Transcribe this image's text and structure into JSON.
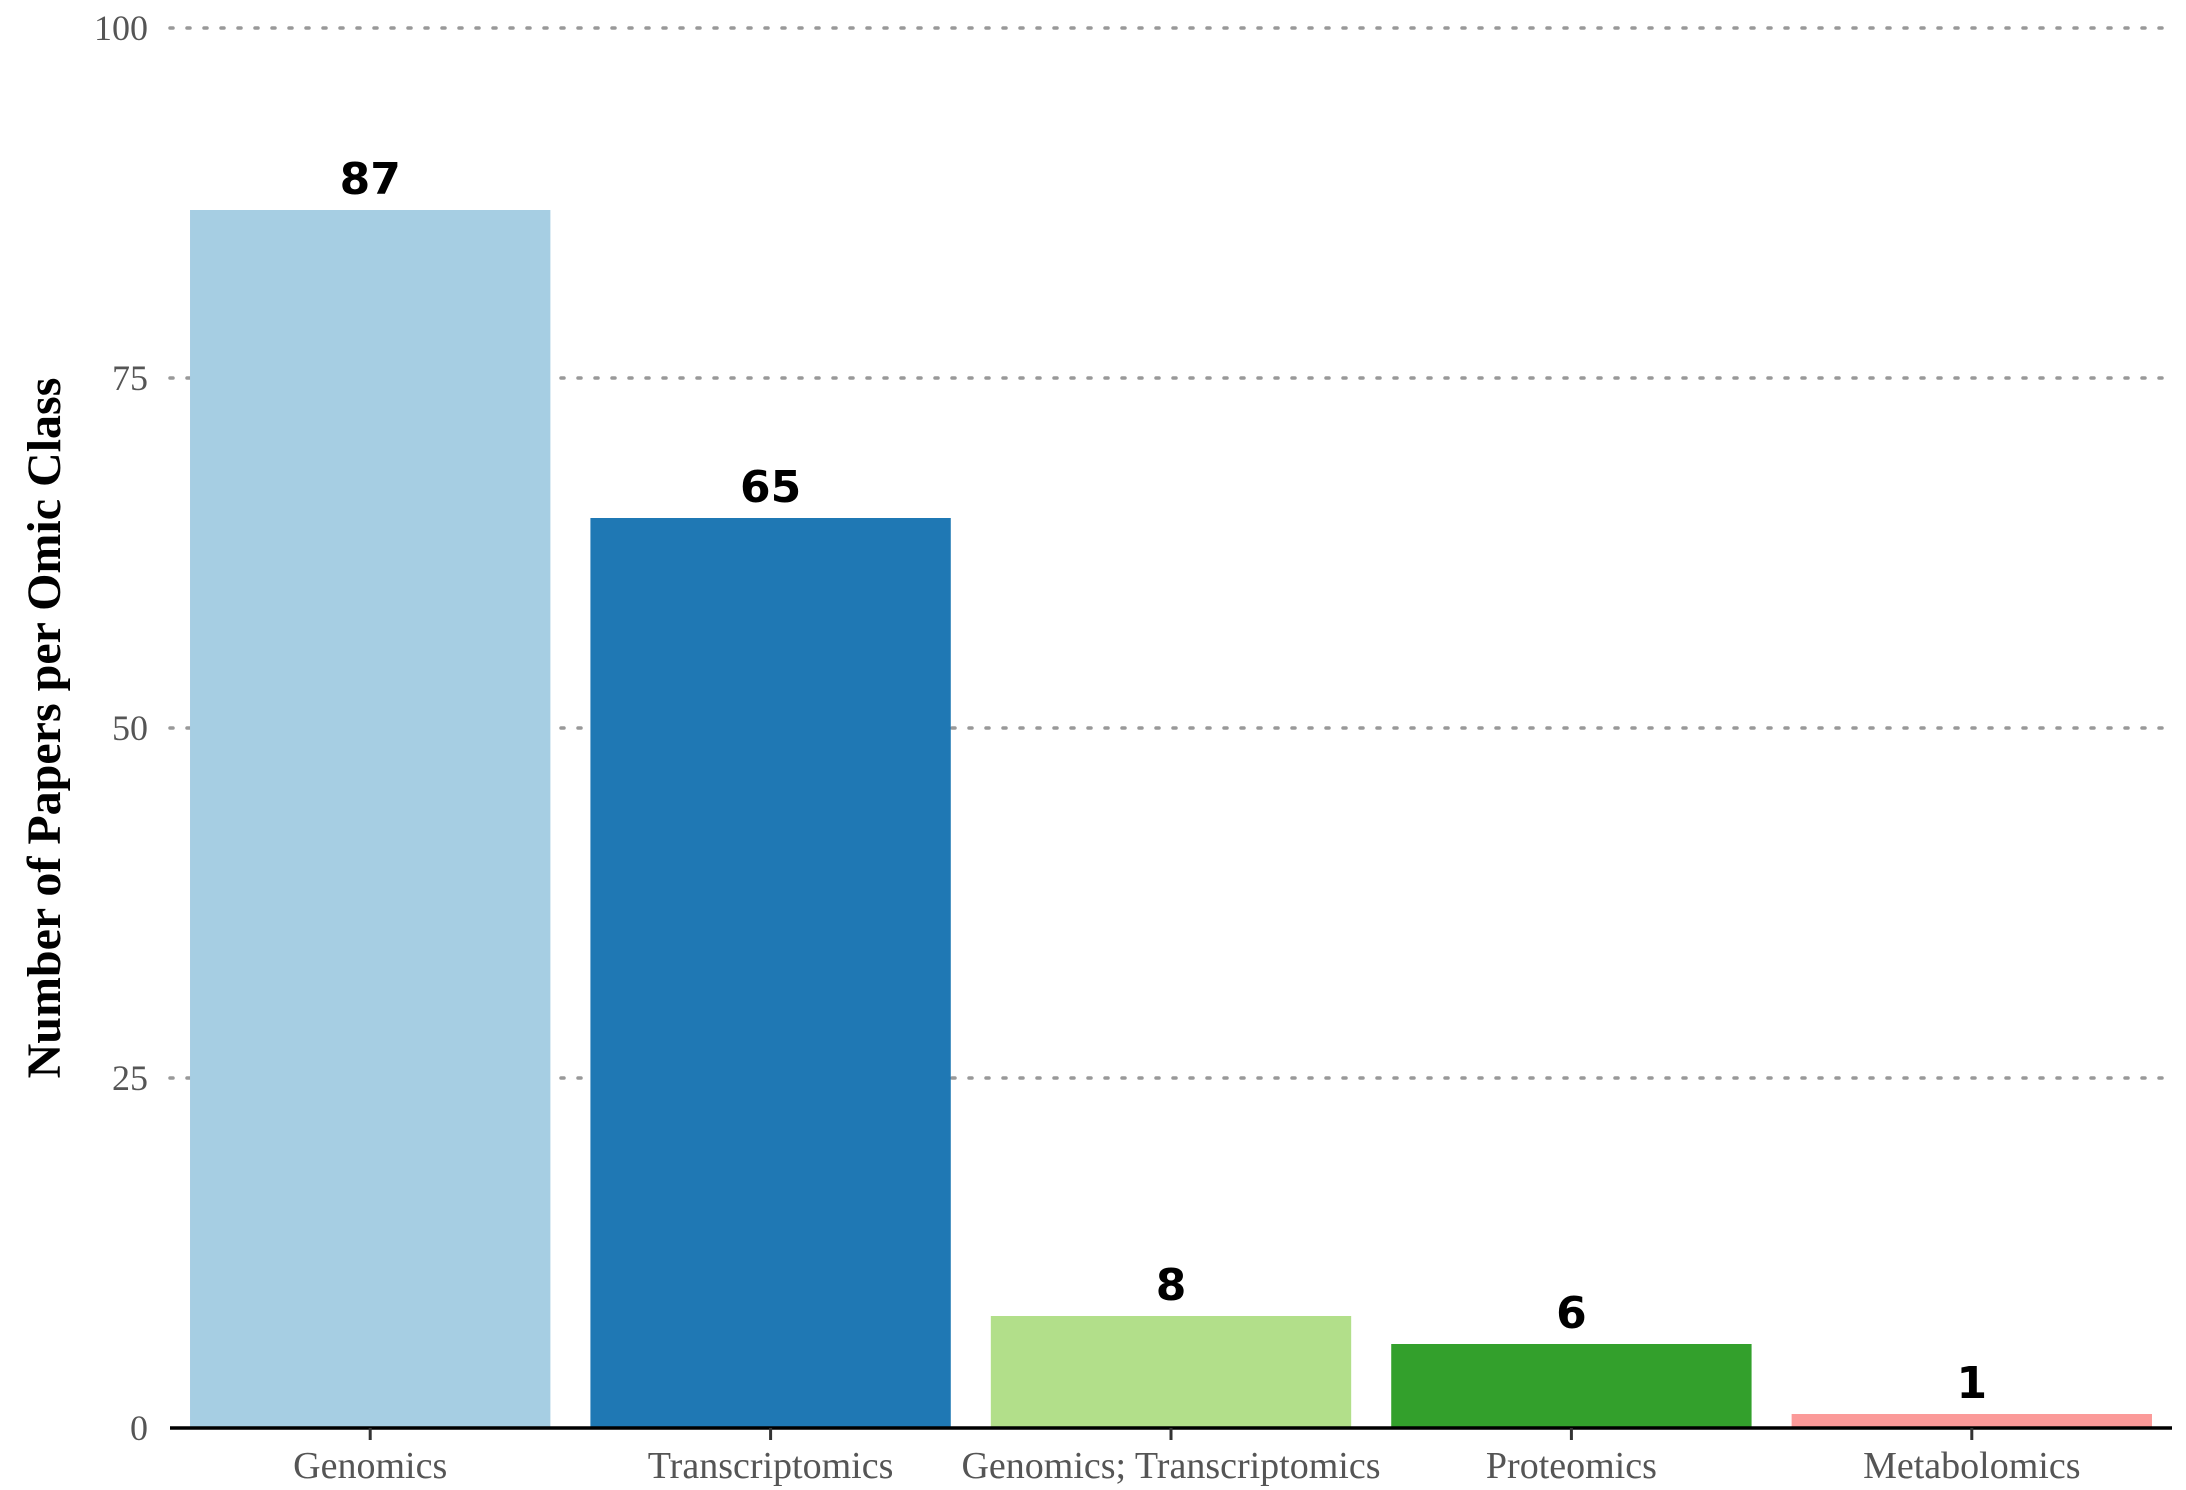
{
  "chart_data": {
    "type": "bar",
    "title": "",
    "xlabel": "",
    "ylabel": "Number of Papers per Omic Class",
    "categories": [
      "Genomics",
      "Transcriptomics",
      "Genomics; Transcriptomics",
      "Proteomics",
      "Metabolomics"
    ],
    "values": [
      87,
      65,
      8,
      6,
      1
    ],
    "data_labels": [
      "87",
      "65",
      "8",
      "6",
      "1"
    ],
    "colors": [
      "#a6cee3",
      "#1f78b4",
      "#b2df8a",
      "#33a02c",
      "#fb9a99"
    ],
    "ylim": [
      0,
      100
    ],
    "yticks": [
      0,
      25,
      50,
      75,
      100
    ],
    "ytick_labels": [
      "0",
      "25",
      "50",
      "75",
      "100"
    ],
    "grid": "horizontal dotted",
    "legend": "none"
  }
}
